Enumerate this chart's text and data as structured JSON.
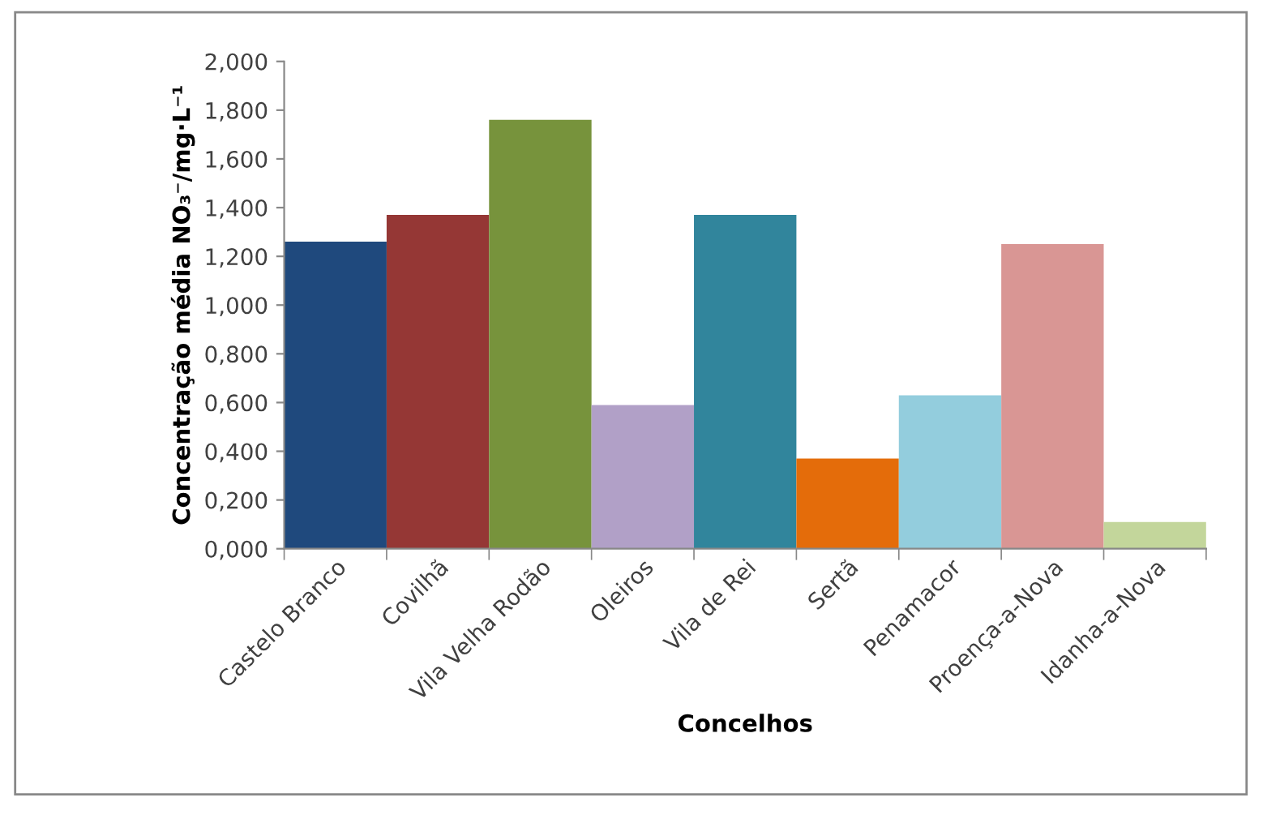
{
  "chart_data": {
    "type": "bar",
    "xlabel": "Concelhos",
    "ylabel": "Concentração média NO₃⁻/mg·L⁻¹",
    "categories": [
      "Castelo Branco",
      "Covilhã",
      "Vila Velha Rodão",
      "Oleiros",
      "Vila de Rei",
      "Sertã",
      "Penamacor",
      "Proença-a-Nova",
      "Idanha-a-Nova"
    ],
    "values": [
      1.26,
      1.37,
      1.76,
      0.59,
      1.37,
      0.37,
      0.63,
      1.25,
      0.11
    ],
    "colors": [
      "#1f497d",
      "#953735",
      "#77933c",
      "#b1a0c7",
      "#31859c",
      "#e46c0a",
      "#93cddd",
      "#d99694",
      "#c3d69b"
    ],
    "ylim": [
      0,
      2
    ],
    "yticks": [
      {
        "value": 0,
        "label": "0,000"
      },
      {
        "value": 0.2,
        "label": "0,200"
      },
      {
        "value": 0.4,
        "label": "0,400"
      },
      {
        "value": 0.6,
        "label": "0,600"
      },
      {
        "value": 0.8,
        "label": "0,800"
      },
      {
        "value": 1,
        "label": "1,000"
      },
      {
        "value": 1.2,
        "label": "1,200"
      },
      {
        "value": 1.4,
        "label": "1,400"
      },
      {
        "value": 1.6,
        "label": "1,600"
      },
      {
        "value": 1.8,
        "label": "1,800"
      },
      {
        "value": 2,
        "label": "2,000"
      }
    ],
    "grid": false
  }
}
